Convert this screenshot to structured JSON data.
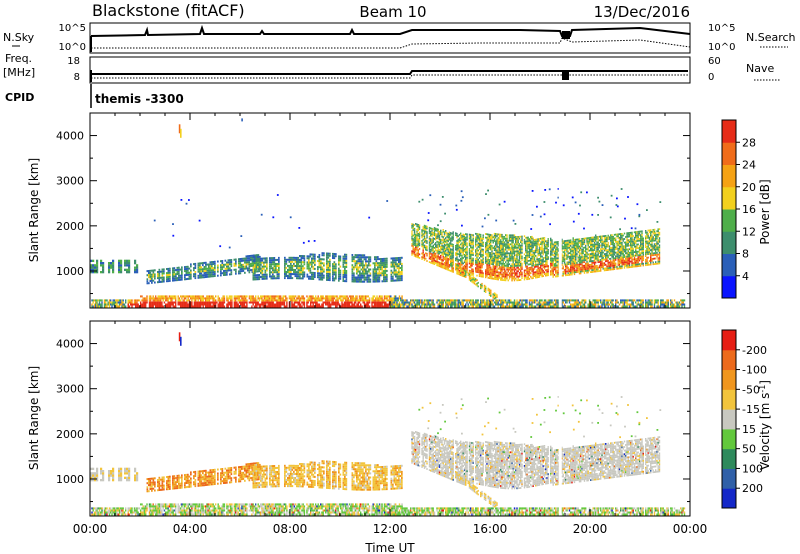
{
  "header": {
    "station": "Blackstone (fitACF)",
    "beam": "Beam 10",
    "date": "13/Dec/2016"
  },
  "top_panels": {
    "nsky_label": "N.Sky",
    "nsky_ticks": [
      "10^5",
      "10^0"
    ],
    "nsearch_label": "N.Search",
    "nsearch_ticks": [
      "10^5",
      "10^0"
    ],
    "freq_label": "Freq.",
    "freq_unit": "[MHz]",
    "freq_ticks": [
      "18",
      "8"
    ],
    "nave_label": "Nave",
    "nave_ticks": [
      "60",
      "0"
    ],
    "cpid_label": "CPID",
    "cpid_value": "themis -3300"
  },
  "chart_data": [
    {
      "type": "heatmap",
      "name": "power",
      "ylabel": "Slant Range [km]",
      "xlabel": "",
      "ylim": [
        180,
        4500
      ],
      "y_ticks": [
        1000,
        2000,
        3000,
        4000
      ],
      "x_range_hours": [
        0,
        24
      ],
      "x_ticks": [
        "00:00",
        "04:00",
        "08:00",
        "12:00",
        "16:00",
        "20:00",
        "00:00"
      ],
      "colorbar": {
        "label": "Power [dB]",
        "ticks": [
          "4",
          "8",
          "12",
          "16",
          "20",
          "24",
          "28"
        ],
        "colors": [
          "#0a14ff",
          "#2a5fb8",
          "#3d8e6d",
          "#4fae4a",
          "#f2d01e",
          "#f5a214",
          "#f06c1a",
          "#e62c18"
        ]
      },
      "features": [
        {
          "t": [
            0.0,
            23.8
          ],
          "range": [
            200,
            400
          ],
          "level": "high"
        },
        {
          "t": [
            0.0,
            6.5
          ],
          "range": [
            700,
            1300
          ],
          "level": "low-mid"
        },
        {
          "t": [
            6.5,
            12.5
          ],
          "range": [
            800,
            1400
          ],
          "level": "low-mid"
        },
        {
          "t": [
            12.8,
            22.8
          ],
          "range": [
            900,
            2000
          ],
          "level": "mid-high"
        }
      ]
    },
    {
      "type": "heatmap",
      "name": "velocity",
      "ylabel": "Slant Range [km]",
      "xlabel": "Time UT",
      "ylim": [
        180,
        4500
      ],
      "y_ticks": [
        1000,
        2000,
        3000,
        4000
      ],
      "x_range_hours": [
        0,
        24
      ],
      "x_ticks": [
        "00:00",
        "04:00",
        "08:00",
        "12:00",
        "16:00",
        "20:00",
        "00:00"
      ],
      "colorbar": {
        "label": "Velocity [m s",
        "label_sup": "-1",
        "label_end": "]",
        "ticks": [
          "200",
          "100",
          "50",
          "15",
          "-15",
          "-50",
          "-100",
          "-200"
        ],
        "colors": [
          "#1428c8",
          "#3060a8",
          "#2e8a5c",
          "#62c83c",
          "#c8c8c0",
          "#f2c43c",
          "#f0961e",
          "#ec6a1c",
          "#e61e14"
        ]
      },
      "features": [
        {
          "t": [
            0.0,
            23.8
          ],
          "range": [
            200,
            400
          ],
          "velocity": "mixed -50 to 50"
        },
        {
          "t": [
            2.5,
            12.5
          ],
          "range": [
            700,
            1400
          ],
          "velocity": "-50 to -15"
        },
        {
          "t": [
            12.8,
            22.5
          ],
          "range": [
            1000,
            2000
          ],
          "velocity": "-15 to 15"
        }
      ]
    }
  ]
}
